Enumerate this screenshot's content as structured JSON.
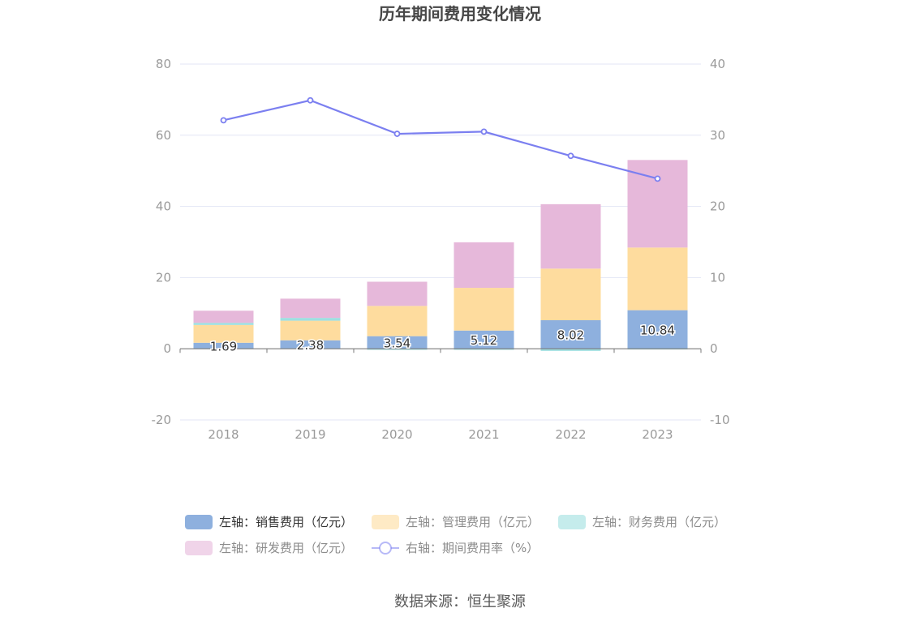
{
  "title": "历年期间费用变化情况",
  "source": "数据来源：恒生聚源",
  "chart_data": {
    "type": "bar",
    "categories": [
      "2018",
      "2019",
      "2020",
      "2021",
      "2022",
      "2023"
    ],
    "left_axis": {
      "min": -20,
      "max": 80,
      "ticks": [
        80,
        60,
        40,
        20,
        0,
        -20
      ]
    },
    "right_axis": {
      "min": -10,
      "max": 40,
      "ticks": [
        40,
        30,
        20,
        10,
        0,
        -10
      ]
    },
    "grid": true,
    "legend_position": "bottom",
    "series": [
      {
        "name": "左轴：销售费用（亿元）",
        "type": "bar",
        "axis": "left",
        "color": "#8eb0de",
        "values": [
          1.69,
          2.38,
          3.54,
          5.12,
          8.02,
          10.84
        ],
        "show_labels": true
      },
      {
        "name": "左轴：管理费用（亿元）",
        "type": "bar",
        "axis": "left",
        "color": "#fedc9e",
        "values": [
          5.0,
          5.5,
          8.5,
          12.0,
          14.5,
          17.6
        ],
        "show_labels": false
      },
      {
        "name": "左轴：财务费用（亿元）",
        "type": "bar",
        "axis": "left",
        "color": "#9fdfe0",
        "values": [
          0.6,
          0.8,
          -0.3,
          -0.3,
          -0.6,
          -0.2
        ],
        "show_labels": false
      },
      {
        "name": "左轴：研发费用（亿元）",
        "type": "bar",
        "axis": "left",
        "color": "#e6b8da",
        "values": [
          3.4,
          5.4,
          6.8,
          12.8,
          18.1,
          24.6
        ],
        "show_labels": false
      },
      {
        "name": "右轴：期间费用率（%）",
        "type": "line",
        "axis": "right",
        "color": "#7b7ff0",
        "values": [
          32.1,
          34.9,
          30.2,
          30.5,
          27.1,
          23.9
        ],
        "show_labels": false
      }
    ]
  }
}
